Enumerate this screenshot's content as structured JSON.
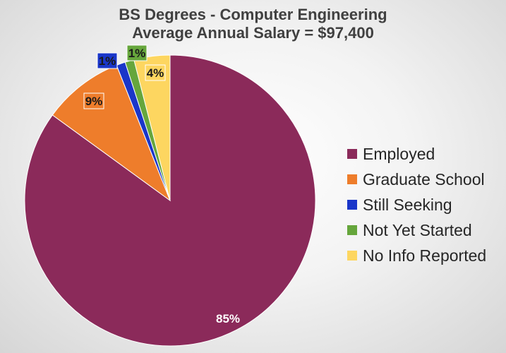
{
  "chart_data": {
    "type": "pie",
    "title": "BS Degrees - Computer Engineering",
    "subtitle": "Average Annual Salary = $97,400",
    "legend_position": "right",
    "categories": [
      "Employed",
      "Graduate School",
      "Still Seeking",
      "Not Yet Started",
      "No Info Reported"
    ],
    "values": [
      85,
      9,
      1,
      1,
      4
    ],
    "data_labels": [
      "85%",
      "9%",
      "1%",
      "1%",
      "4%"
    ],
    "colors": [
      "#8b2a5a",
      "#ee7d2b",
      "#1a36c9",
      "#66a63c",
      "#fdd660"
    ]
  }
}
